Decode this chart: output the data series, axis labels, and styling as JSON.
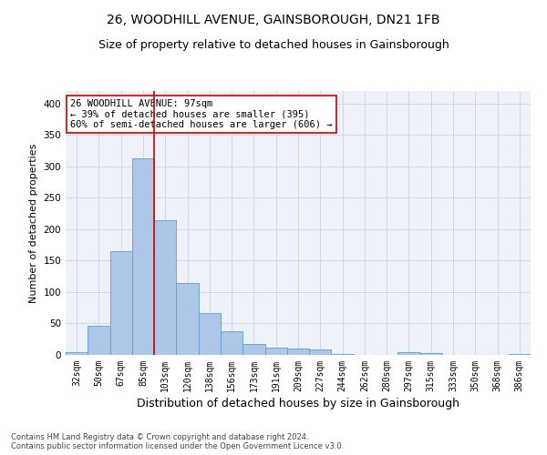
{
  "title1": "26, WOODHILL AVENUE, GAINSBOROUGH, DN21 1FB",
  "title2": "Size of property relative to detached houses in Gainsborough",
  "xlabel": "Distribution of detached houses by size in Gainsborough",
  "ylabel": "Number of detached properties",
  "categories": [
    "32sqm",
    "50sqm",
    "67sqm",
    "85sqm",
    "103sqm",
    "120sqm",
    "138sqm",
    "156sqm",
    "173sqm",
    "191sqm",
    "209sqm",
    "227sqm",
    "244sqm",
    "262sqm",
    "280sqm",
    "297sqm",
    "315sqm",
    "333sqm",
    "350sqm",
    "368sqm",
    "386sqm"
  ],
  "values": [
    4,
    46,
    165,
    313,
    215,
    115,
    67,
    37,
    17,
    12,
    10,
    8,
    2,
    0,
    0,
    4,
    3,
    0,
    0,
    0,
    2
  ],
  "bar_color": "#aec6e8",
  "bar_edge_color": "#5a9fd4",
  "vline_x": 3.5,
  "vline_color": "#cc0000",
  "annotation_text": "26 WOODHILL AVENUE: 97sqm\n← 39% of detached houses are smaller (395)\n60% of semi-detached houses are larger (606) →",
  "annotation_box_color": "#ffffff",
  "annotation_box_edge": "#cc0000",
  "ylim": [
    0,
    420
  ],
  "yticks": [
    0,
    50,
    100,
    150,
    200,
    250,
    300,
    350,
    400
  ],
  "grid_color": "#d0d8e8",
  "bg_color": "#eef2f8",
  "footnote": "Contains HM Land Registry data © Crown copyright and database right 2024.\nContains public sector information licensed under the Open Government Licence v3.0.",
  "title1_fontsize": 10,
  "title2_fontsize": 9,
  "xlabel_fontsize": 9,
  "ylabel_fontsize": 8,
  "annot_fontsize": 7.5,
  "tick_fontsize": 7,
  "ytick_fontsize": 7.5,
  "footnote_fontsize": 6
}
